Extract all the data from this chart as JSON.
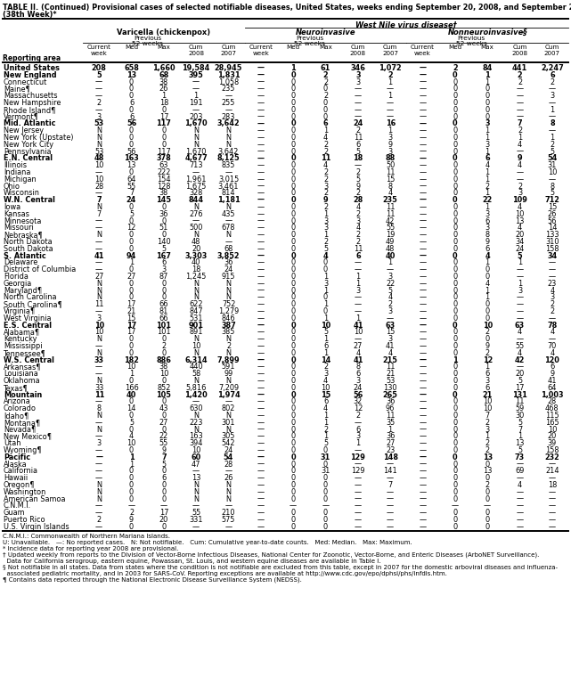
{
  "title_line1": "TABLE II. (Continued) Provisional cases of selected notifiable diseases, United States, weeks ending September 20, 2008, and September 22, 2007",
  "title_line2": "(38th Week)*",
  "col_group1": "Varicella (chickenpox)",
  "col_group2": "Neuroinvasive",
  "col_group3": "Nonneuroinvasive§",
  "west_nile_header": "West Nile virus disease†",
  "rows": [
    [
      "United States",
      "208",
      "658",
      "1,660",
      "19,584",
      "28,945",
      "—",
      "1",
      "61",
      "346",
      "1,072",
      "—",
      "2",
      "84",
      "441",
      "2,247"
    ],
    [
      "New England",
      "5",
      "13",
      "68",
      "395",
      "1,831",
      "—",
      "0",
      "2",
      "3",
      "2",
      "—",
      "0",
      "1",
      "2",
      "6"
    ],
    [
      "Connecticut",
      "—",
      "0",
      "38",
      "—",
      "1,058",
      "—",
      "0",
      "2",
      "3",
      "1",
      "—",
      "0",
      "1",
      "2",
      "2"
    ],
    [
      "Maine¶",
      "—",
      "0",
      "26",
      "—",
      "235",
      "—",
      "0",
      "0",
      "—",
      "—",
      "—",
      "0",
      "0",
      "—",
      "—"
    ],
    [
      "Massachusetts",
      "—",
      "0",
      "1",
      "1",
      "—",
      "—",
      "0",
      "2",
      "—",
      "1",
      "—",
      "0",
      "0",
      "—",
      "3"
    ],
    [
      "New Hampshire",
      "2",
      "6",
      "18",
      "191",
      "255",
      "—",
      "0",
      "0",
      "—",
      "—",
      "—",
      "0",
      "0",
      "—",
      "—"
    ],
    [
      "Rhode Island¶",
      "—",
      "0",
      "0",
      "—",
      "—",
      "—",
      "0",
      "0",
      "—",
      "—",
      "—",
      "0",
      "0",
      "—",
      "1"
    ],
    [
      "Vermont¶",
      "3",
      "6",
      "17",
      "203",
      "283",
      "—",
      "0",
      "0",
      "—",
      "—",
      "—",
      "0",
      "0",
      "—",
      "—"
    ],
    [
      "Mid. Atlantic",
      "53",
      "56",
      "117",
      "1,670",
      "3,642",
      "—",
      "0",
      "6",
      "24",
      "16",
      "—",
      "0",
      "3",
      "7",
      "8"
    ],
    [
      "New Jersey",
      "N",
      "0",
      "0",
      "N",
      "N",
      "—",
      "0",
      "1",
      "2",
      "1",
      "—",
      "0",
      "1",
      "2",
      "—"
    ],
    [
      "New York (Upstate)",
      "N",
      "0",
      "0",
      "N",
      "N",
      "—",
      "0",
      "4",
      "11",
      "3",
      "—",
      "0",
      "1",
      "1",
      "1"
    ],
    [
      "New York City",
      "N",
      "0",
      "0",
      "N",
      "N",
      "—",
      "0",
      "2",
      "6",
      "9",
      "—",
      "0",
      "3",
      "4",
      "2"
    ],
    [
      "Pennsylvania",
      "53",
      "56",
      "117",
      "1,670",
      "3,642",
      "—",
      "0",
      "2",
      "5",
      "3",
      "—",
      "0",
      "1",
      "—",
      "5"
    ],
    [
      "E.N. Central",
      "48",
      "163",
      "378",
      "4,677",
      "8,125",
      "—",
      "0",
      "11",
      "18",
      "88",
      "—",
      "0",
      "6",
      "9",
      "54"
    ],
    [
      "Illinois",
      "10",
      "13",
      "63",
      "713",
      "835",
      "—",
      "0",
      "4",
      "—",
      "50",
      "—",
      "0",
      "4",
      "4",
      "31"
    ],
    [
      "Indiana",
      "—",
      "0",
      "222",
      "—",
      "—",
      "—",
      "0",
      "2",
      "2",
      "11",
      "—",
      "0",
      "1",
      "—",
      "10"
    ],
    [
      "Michigan",
      "10",
      "64",
      "154",
      "1,961",
      "3,015",
      "—",
      "0",
      "2",
      "5",
      "15",
      "—",
      "0",
      "1",
      "—",
      "—"
    ],
    [
      "Ohio",
      "28",
      "55",
      "128",
      "1,675",
      "3,461",
      "—",
      "0",
      "3",
      "9",
      "8",
      "—",
      "0",
      "2",
      "2",
      "8"
    ],
    [
      "Wisconsin",
      "—",
      "7",
      "38",
      "328",
      "814",
      "—",
      "0",
      "2",
      "2",
      "4",
      "—",
      "0",
      "1",
      "3",
      "5"
    ],
    [
      "W.N. Central",
      "7",
      "24",
      "145",
      "844",
      "1,181",
      "—",
      "0",
      "9",
      "28",
      "235",
      "—",
      "0",
      "22",
      "109",
      "712"
    ],
    [
      "Iowa",
      "N",
      "0",
      "0",
      "N",
      "N",
      "—",
      "0",
      "2",
      "4",
      "11",
      "—",
      "0",
      "1",
      "4",
      "15"
    ],
    [
      "Kansas",
      "7",
      "5",
      "36",
      "276",
      "435",
      "—",
      "0",
      "1",
      "2",
      "11",
      "—",
      "0",
      "3",
      "10",
      "26"
    ],
    [
      "Minnesota",
      "—",
      "0",
      "0",
      "—",
      "—",
      "—",
      "0",
      "3",
      "3",
      "42",
      "—",
      "0",
      "6",
      "13",
      "56"
    ],
    [
      "Missouri",
      "—",
      "12",
      "51",
      "500",
      "678",
      "—",
      "0",
      "3",
      "4",
      "55",
      "—",
      "0",
      "3",
      "4",
      "14"
    ],
    [
      "Nebraska¶",
      "N",
      "0",
      "0",
      "N",
      "N",
      "—",
      "0",
      "1",
      "2",
      "19",
      "—",
      "0",
      "8",
      "20",
      "133"
    ],
    [
      "North Dakota",
      "—",
      "0",
      "140",
      "48",
      "—",
      "—",
      "0",
      "2",
      "2",
      "49",
      "—",
      "0",
      "9",
      "34",
      "310"
    ],
    [
      "South Dakota",
      "—",
      "0",
      "5",
      "20",
      "68",
      "—",
      "0",
      "5",
      "11",
      "48",
      "—",
      "0",
      "6",
      "24",
      "158"
    ],
    [
      "S. Atlantic",
      "41",
      "94",
      "167",
      "3,303",
      "3,852",
      "—",
      "0",
      "4",
      "6",
      "40",
      "—",
      "0",
      "4",
      "5",
      "34"
    ],
    [
      "Delaware",
      "—",
      "1",
      "6",
      "40",
      "36",
      "—",
      "0",
      "0",
      "—",
      "1",
      "—",
      "0",
      "1",
      "1",
      "—"
    ],
    [
      "District of Columbia",
      "—",
      "0",
      "3",
      "18",
      "24",
      "—",
      "0",
      "0",
      "—",
      "—",
      "—",
      "0",
      "0",
      "—",
      "—"
    ],
    [
      "Florida",
      "27",
      "27",
      "87",
      "1,245",
      "915",
      "—",
      "0",
      "1",
      "1",
      "3",
      "—",
      "0",
      "0",
      "—",
      "—"
    ],
    [
      "Georgia",
      "N",
      "0",
      "0",
      "N",
      "N",
      "—",
      "0",
      "3",
      "1",
      "22",
      "—",
      "0",
      "4",
      "1",
      "23"
    ],
    [
      "Maryland¶",
      "N",
      "0",
      "0",
      "N",
      "N",
      "—",
      "0",
      "1",
      "3",
      "5",
      "—",
      "0",
      "1",
      "3",
      "4"
    ],
    [
      "North Carolina",
      "N",
      "0",
      "0",
      "N",
      "N",
      "—",
      "0",
      "0",
      "—",
      "4",
      "—",
      "0",
      "1",
      "—",
      "3"
    ],
    [
      "South Carolina¶",
      "11",
      "17",
      "66",
      "622",
      "752",
      "—",
      "0",
      "1",
      "—",
      "2",
      "—",
      "0",
      "0",
      "—",
      "2"
    ],
    [
      "Virginia¶",
      "—",
      "21",
      "81",
      "847",
      "1,279",
      "—",
      "0",
      "0",
      "—",
      "3",
      "—",
      "0",
      "0",
      "—",
      "2"
    ],
    [
      "West Virginia",
      "3",
      "15",
      "66",
      "531",
      "846",
      "—",
      "0",
      "1",
      "1",
      "—",
      "—",
      "0",
      "0",
      "—",
      "—"
    ],
    [
      "E.S. Central",
      "10",
      "17",
      "101",
      "901",
      "387",
      "—",
      "0",
      "10",
      "41",
      "63",
      "—",
      "0",
      "10",
      "63",
      "78"
    ],
    [
      "Alabama¶",
      "10",
      "17",
      "101",
      "891",
      "385",
      "—",
      "0",
      "5",
      "10",
      "15",
      "—",
      "0",
      "2",
      "4",
      "4"
    ],
    [
      "Kentucky",
      "N",
      "0",
      "0",
      "N",
      "N",
      "—",
      "0",
      "1",
      "—",
      "3",
      "—",
      "0",
      "0",
      "—",
      "—"
    ],
    [
      "Mississippi",
      "—",
      "0",
      "2",
      "10",
      "2",
      "—",
      "0",
      "6",
      "27",
      "41",
      "—",
      "0",
      "9",
      "55",
      "70"
    ],
    [
      "Tennessee¶",
      "N",
      "0",
      "0",
      "N",
      "N",
      "—",
      "0",
      "1",
      "4",
      "4",
      "—",
      "0",
      "2",
      "4",
      "4"
    ],
    [
      "W.S. Central",
      "33",
      "182",
      "886",
      "6,314",
      "7,899",
      "—",
      "0",
      "14",
      "41",
      "215",
      "—",
      "1",
      "12",
      "42",
      "120"
    ],
    [
      "Arkansas¶",
      "—",
      "10",
      "38",
      "440",
      "591",
      "—",
      "0",
      "2",
      "8",
      "11",
      "—",
      "0",
      "1",
      "—",
      "6"
    ],
    [
      "Louisiana",
      "—",
      "1",
      "10",
      "58",
      "99",
      "—",
      "0",
      "3",
      "6",
      "21",
      "—",
      "0",
      "6",
      "20",
      "9"
    ],
    [
      "Oklahoma",
      "N",
      "0",
      "0",
      "N",
      "N",
      "—",
      "0",
      "4",
      "3",
      "53",
      "—",
      "0",
      "3",
      "5",
      "41"
    ],
    [
      "Texas¶",
      "33",
      "166",
      "852",
      "5,816",
      "7,209",
      "—",
      "0",
      "10",
      "24",
      "130",
      "—",
      "0",
      "6",
      "17",
      "64"
    ],
    [
      "Mountain",
      "11",
      "40",
      "105",
      "1,420",
      "1,974",
      "—",
      "0",
      "15",
      "56",
      "265",
      "—",
      "0",
      "21",
      "131",
      "1,003"
    ],
    [
      "Arizona",
      "—",
      "0",
      "0",
      "—",
      "—",
      "—",
      "0",
      "6",
      "32",
      "36",
      "—",
      "0",
      "10",
      "11",
      "28"
    ],
    [
      "Colorado",
      "8",
      "14",
      "43",
      "630",
      "802",
      "—",
      "0",
      "4",
      "12",
      "96",
      "—",
      "0",
      "10",
      "59",
      "468"
    ],
    [
      "Idaho¶",
      "N",
      "0",
      "0",
      "N",
      "N",
      "—",
      "0",
      "1",
      "2",
      "11",
      "—",
      "0",
      "7",
      "30",
      "115"
    ],
    [
      "Montana¶",
      "—",
      "5",
      "27",
      "223",
      "301",
      "—",
      "0",
      "1",
      "—",
      "35",
      "—",
      "0",
      "2",
      "5",
      "165"
    ],
    [
      "Nevada¶",
      "N",
      "0",
      "0",
      "N",
      "N",
      "—",
      "0",
      "2",
      "6",
      "1",
      "—",
      "0",
      "3",
      "7",
      "10"
    ],
    [
      "New Mexico¶",
      "—",
      "4",
      "22",
      "163",
      "305",
      "—",
      "0",
      "1",
      "3",
      "36",
      "—",
      "0",
      "1",
      "1",
      "20"
    ],
    [
      "Utah",
      "3",
      "10",
      "55",
      "394",
      "542",
      "—",
      "0",
      "5",
      "1",
      "27",
      "—",
      "0",
      "2",
      "13",
      "39"
    ],
    [
      "Wyoming¶",
      "—",
      "0",
      "9",
      "10",
      "24",
      "—",
      "0",
      "0",
      "—",
      "23",
      "—",
      "0",
      "2",
      "5",
      "158"
    ],
    [
      "Pacific",
      "—",
      "1",
      "7",
      "60",
      "54",
      "—",
      "0",
      "31",
      "129",
      "148",
      "—",
      "0",
      "13",
      "73",
      "232"
    ],
    [
      "Alaska",
      "—",
      "1",
      "5",
      "47",
      "28",
      "—",
      "0",
      "0",
      "—",
      "—",
      "—",
      "0",
      "0",
      "—",
      "—"
    ],
    [
      "California",
      "—",
      "0",
      "0",
      "—",
      "—",
      "—",
      "0",
      "31",
      "129",
      "141",
      "—",
      "0",
      "13",
      "69",
      "214"
    ],
    [
      "Hawaii",
      "—",
      "0",
      "6",
      "13",
      "26",
      "—",
      "0",
      "0",
      "—",
      "—",
      "—",
      "0",
      "0",
      "—",
      "—"
    ],
    [
      "Oregon¶",
      "N",
      "0",
      "0",
      "N",
      "N",
      "—",
      "0",
      "0",
      "—",
      "7",
      "—",
      "0",
      "2",
      "4",
      "18"
    ],
    [
      "Washington",
      "N",
      "0",
      "0",
      "N",
      "N",
      "—",
      "0",
      "0",
      "—",
      "—",
      "—",
      "0",
      "0",
      "—",
      "—"
    ],
    [
      "American Samoa",
      "N",
      "0",
      "0",
      "N",
      "N",
      "—",
      "0",
      "0",
      "—",
      "—",
      "—",
      "0",
      "0",
      "—",
      "—"
    ],
    [
      "C.N.M.I.",
      "—",
      "—",
      "—",
      "—",
      "—",
      "—",
      "—",
      "—",
      "—",
      "—",
      "—",
      "—",
      "—",
      "—",
      "—"
    ],
    [
      "Guam",
      "—",
      "2",
      "17",
      "55",
      "210",
      "—",
      "0",
      "0",
      "—",
      "—",
      "—",
      "0",
      "0",
      "—",
      "—"
    ],
    [
      "Puerto Rico",
      "2",
      "9",
      "20",
      "331",
      "575",
      "—",
      "0",
      "0",
      "—",
      "—",
      "—",
      "0",
      "0",
      "—",
      "—"
    ],
    [
      "U.S. Virgin Islands",
      "—",
      "0",
      "0",
      "—",
      "—",
      "—",
      "0",
      "0",
      "—",
      "—",
      "—",
      "0",
      "0",
      "—",
      "—"
    ]
  ],
  "bold_rows": [
    0,
    1,
    8,
    13,
    19,
    27,
    37,
    42,
    47,
    56
  ],
  "footnotes": [
    "C.N.M.I.: Commonwealth of Northern Mariana Islands.",
    "U: Unavailable.   —: No reported cases.   N: Not notifiable.   Cum: Cumulative year-to-date counts.   Med: Median.   Max: Maximum.",
    "* Incidence data for reporting year 2008 are provisional.",
    "† Updated weekly from reports to the Division of Vector-Borne Infectious Diseases, National Center for Zoonotic, Vector-Borne, and Enteric Diseases (ArboNET Surveillance).",
    "  Data for California serogroup, eastern equine, Powassan, St. Louis, and western equine diseases are available in Table I.",
    "§ Not notifiable in all states. Data from states where the condition is not notifiable are excluded from this table, except in 2007 for the domestic arboviral diseases and influenza-",
    "  associated pediatric mortality, and in 2003 for SARS-CoV. Reporting exceptions are available at http://www.cdc.gov/epo/dphsi/phs/infdis.htm.",
    "¶ Contains data reported through the National Electronic Disease Surveillance System (NEDSS)."
  ]
}
